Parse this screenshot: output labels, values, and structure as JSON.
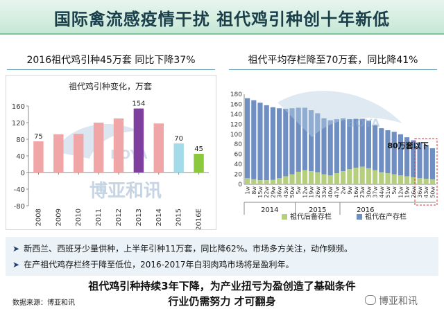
{
  "header": {
    "title": "国际禽流感疫情干扰  祖代鸡引种创十年新低"
  },
  "left_panel": {
    "title": "2016祖代鸡引种45万套  同比下降37%"
  },
  "right_panel": {
    "title": "祖代平均存栏降至70万套，同比降41%"
  },
  "watermark": {
    "logo_text": "博亚和讯",
    "brand": "BOYA"
  },
  "chart_data": [
    {
      "type": "bar",
      "title": "祖代鸡引种变化，万套",
      "categories": [
        "2008",
        "2009",
        "2010",
        "2011",
        "2012",
        "2013",
        "2014",
        "2015",
        "2016E"
      ],
      "values": [
        75,
        92,
        93,
        120,
        130,
        154,
        118,
        70,
        45
      ],
      "data_labels": [
        "75",
        "",
        "",
        "",
        "",
        "154",
        "",
        "70",
        "45"
      ],
      "colors": [
        "#f0a6a6",
        "#f0a6a6",
        "#f0a6a6",
        "#f0a6a6",
        "#f0a6a6",
        "#7e3f9e",
        "#f0a6a6",
        "#a3dbe8",
        "#8cc83e"
      ],
      "ylim": [
        -80,
        160
      ],
      "yticks": [
        -80,
        -40,
        0,
        40,
        80,
        120,
        160
      ],
      "grid": false
    },
    {
      "type": "bar",
      "stacked": true,
      "x_labels": [
        "1w",
        "8w",
        "15w",
        "22w",
        "29w",
        "36w",
        "43w",
        "50w",
        "5w",
        "12w",
        "19w",
        "26w",
        "33w",
        "40w",
        "47w",
        "2w",
        "9w",
        "16w",
        "23w",
        "30w",
        "37w",
        "44w",
        "51w",
        "5w",
        "12w",
        "19w",
        "26w",
        "36w",
        "43w",
        "50w"
      ],
      "year_labels": [
        "2014",
        "2015",
        "2016"
      ],
      "yticks": [
        0,
        20,
        40,
        60,
        80,
        100,
        120,
        140,
        160,
        180
      ],
      "ylim": [
        0,
        180
      ],
      "series": [
        {
          "name": "祖代后备存栏",
          "color": "#b5cf7e",
          "values": [
            12,
            10,
            8,
            8,
            9,
            12,
            16,
            20,
            25,
            28,
            26,
            24,
            20,
            18,
            22,
            26,
            30,
            33,
            35,
            32,
            28,
            24,
            22,
            20,
            18,
            16,
            14,
            12,
            11,
            10
          ]
        },
        {
          "name": "祖代在产存栏",
          "color": "#6f8fc3",
          "values": [
            160,
            158,
            155,
            150,
            145,
            140,
            135,
            132,
            128,
            125,
            122,
            118,
            112,
            110,
            108,
            106,
            100,
            98,
            96,
            95,
            90,
            88,
            86,
            85,
            82,
            78,
            74,
            72,
            68,
            62
          ]
        }
      ],
      "annotation": "80万套以下"
    }
  ],
  "bullets": [
    "新西兰、西班牙少量供种，上半年引种11万套，同比降62%。市场多方关注，动作频频。",
    "在产祖代鸡存栏终于降至低位，2016-2017年白羽肉鸡市场将是盈利年。"
  ],
  "conclusion": {
    "line1": "祖代鸡引种持续3年下降，为产业扭亏为盈创造了基础条件",
    "line2": "行业仍需努力 才可翻身"
  },
  "source": "数据来源：博亚和讯",
  "footer_watermark": "博亚和讯"
}
